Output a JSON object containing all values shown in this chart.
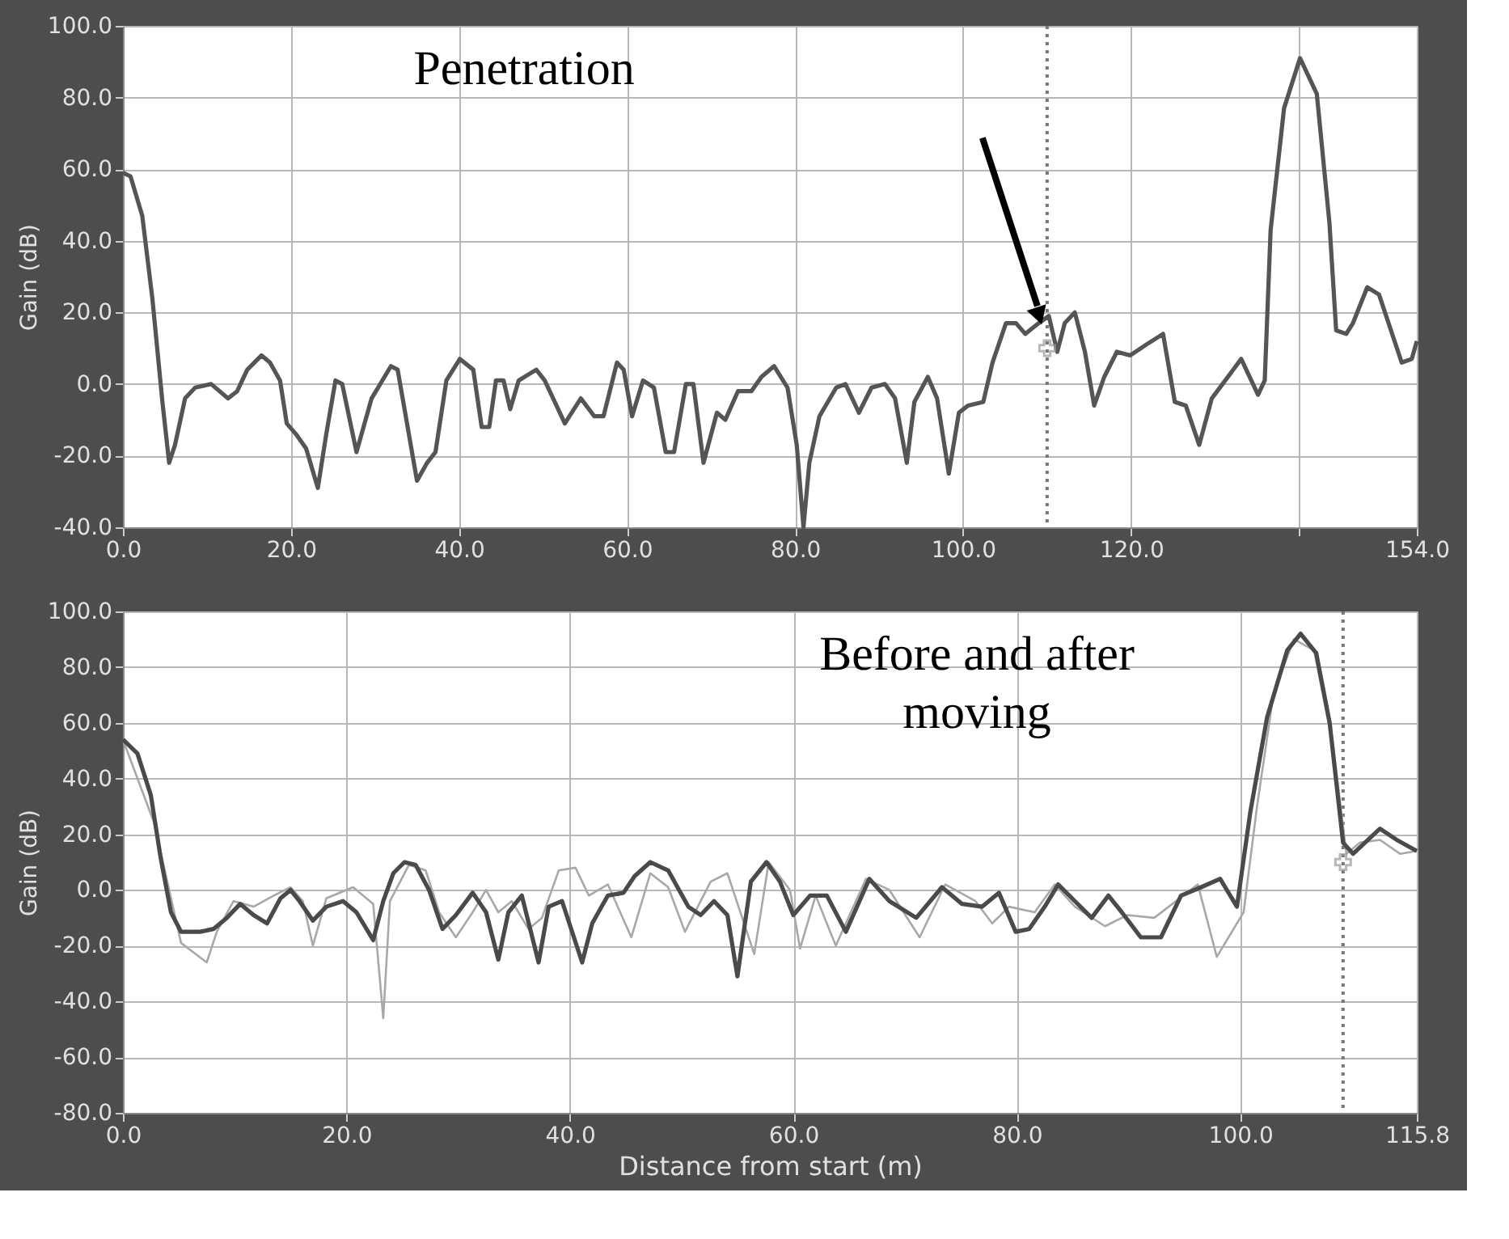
{
  "chart_data": [
    {
      "type": "line",
      "ylabel": "Gain (dB)",
      "annotations": [
        "Penetration"
      ],
      "xlim": [
        0,
        154
      ],
      "ylim": [
        -40,
        100
      ],
      "xticks": [
        {
          "value": 0,
          "label": "0.0"
        },
        {
          "value": 20,
          "label": "20.0"
        },
        {
          "value": 40,
          "label": "40.0"
        },
        {
          "value": 60,
          "label": "60.0"
        },
        {
          "value": 80,
          "label": "80.0"
        },
        {
          "value": 100,
          "label": "100.0"
        },
        {
          "value": 120,
          "label": "120.0"
        },
        {
          "value": 140,
          "label": null
        },
        {
          "value": 154,
          "label": "154.0"
        }
      ],
      "yticks": [
        {
          "value": -40,
          "label": "-40.0"
        },
        {
          "value": -20,
          "label": "-20.0"
        },
        {
          "value": 0,
          "label": "0.0"
        },
        {
          "value": 20,
          "label": "20.0"
        },
        {
          "value": 40,
          "label": "40.0"
        },
        {
          "value": 60,
          "label": "60.0"
        },
        {
          "value": 80,
          "label": "80.0"
        },
        {
          "value": 100,
          "label": "100.0"
        }
      ],
      "grid": true,
      "ref_lines": [
        {
          "axis": "x",
          "value": 110,
          "color": "#777777",
          "line_style": "dotted"
        }
      ],
      "series": [
        {
          "color": "#555555",
          "x": [
            0,
            0.9,
            2.3,
            3.5,
            4.7,
            5.5,
            6.2,
            7.4,
            8.6,
            10.5,
            12.5,
            13.6,
            14.8,
            16.5,
            17.5,
            18.7,
            19.5,
            20.6,
            21.8,
            23.2,
            24.2,
            25.3,
            26.1,
            27.8,
            29.6,
            31.9,
            32.7,
            35,
            36.2,
            37.2,
            38.5,
            40.1,
            41.7,
            42.7,
            43.6,
            44.4,
            45.3,
            46.1,
            47.1,
            49.2,
            50.2,
            52.6,
            54.5,
            56.1,
            57.2,
            58.8,
            59.6,
            60.6,
            61.9,
            63.2,
            64.6,
            65.6,
            67,
            67.9,
            69.1,
            70.7,
            71.7,
            73.2,
            74.8,
            76,
            77.5,
            79.1,
            80.2,
            81,
            81.7,
            82.9,
            84.9,
            86,
            87.6,
            89.1,
            90.7,
            91.9,
            93.3,
            94.2,
            95.8,
            96.9,
            98.3,
            99.5,
            100.6,
            102.4,
            103.5,
            105.1,
            106.3,
            107.4,
            109,
            110.2,
            111.2,
            112.1,
            113.3,
            114.5,
            115.6,
            116.8,
            118.3,
            119.9,
            121.8,
            123.8,
            125.2,
            126.5,
            128.1,
            129.6,
            131.2,
            133.1,
            134.3,
            135.1,
            135.9,
            136.6,
            138.2,
            140.1,
            142.1,
            143.6,
            144.4,
            145.6,
            146.4,
            148.1,
            149.5,
            152.2,
            153.4,
            154
          ],
          "values": [
            59,
            58,
            47,
            24,
            -5,
            -22,
            -17,
            -4,
            -1,
            0,
            -4,
            -2,
            4,
            8,
            6,
            1,
            -11,
            -14,
            -18,
            -29,
            -14,
            1,
            0,
            -19,
            -4,
            5,
            4,
            -27,
            -22,
            -19,
            1,
            7,
            4,
            -12,
            -12,
            1,
            1,
            -7,
            1,
            4,
            1,
            -11,
            -4,
            -9,
            -9,
            6,
            4,
            -9,
            1,
            -1,
            -19,
            -19,
            0,
            0,
            -22,
            -8,
            -10,
            -2,
            -2,
            2,
            5,
            -1,
            -17,
            -40,
            -22,
            -9,
            -1,
            0,
            -8,
            -1,
            0,
            -4,
            -22,
            -5,
            2,
            -4,
            -25,
            -8,
            -6,
            -5,
            6,
            17,
            17,
            14,
            17,
            19,
            9,
            17,
            20,
            9,
            -6,
            2,
            9,
            8,
            11,
            14,
            -5,
            -6,
            -17,
            -4,
            1,
            7,
            1,
            -3,
            1,
            43,
            77,
            91,
            81,
            45,
            15,
            14,
            17,
            27,
            25,
            6,
            7,
            12
          ]
        },
        {
          "type": "scatter",
          "marker": "cross",
          "color": "#999999",
          "x": [
            110
          ],
          "values": [
            10
          ]
        }
      ]
    },
    {
      "type": "line",
      "xlabel": "Distance from start (m)",
      "ylabel": "Gain (dB)",
      "annotations": [
        "Before and after\nmoving"
      ],
      "xlim": [
        0,
        115.8
      ],
      "ylim": [
        -80,
        100
      ],
      "xticks": [
        {
          "value": 0,
          "label": "0.0"
        },
        {
          "value": 20,
          "label": "20.0"
        },
        {
          "value": 40,
          "label": "40.0"
        },
        {
          "value": 60,
          "label": "60.0"
        },
        {
          "value": 80,
          "label": "80.0"
        },
        {
          "value": 100,
          "label": "100.0"
        },
        {
          "value": 115.8,
          "label": "115.8"
        }
      ],
      "yticks": [
        {
          "value": -80,
          "label": "-80.0"
        },
        {
          "value": -60,
          "label": "-60.0"
        },
        {
          "value": -40,
          "label": "-40.0"
        },
        {
          "value": -20,
          "label": "-20.0"
        },
        {
          "value": 0,
          "label": "0.0"
        },
        {
          "value": 20,
          "label": "20.0"
        },
        {
          "value": 40,
          "label": "40.0"
        },
        {
          "value": 60,
          "label": "60.0"
        },
        {
          "value": 80,
          "label": "80.0"
        },
        {
          "value": 100,
          "label": "100.0"
        }
      ],
      "grid": true,
      "ref_lines": [
        {
          "axis": "x",
          "value": 109.2,
          "color": "#777777",
          "line_style": "dotted"
        }
      ],
      "series": [
        {
          "color": "#a8a8a8",
          "x": [
            0,
            2.8,
            5.2,
            7.5,
            8.4,
            9.9,
            11.7,
            13.5,
            15,
            16.1,
            17,
            18.2,
            20.6,
            22.4,
            23.3,
            23.9,
            25.6,
            27.1,
            28.3,
            29.8,
            31.3,
            32.5,
            33.6,
            34.8,
            36.3,
            37.5,
            39,
            40.5,
            41.7,
            43.4,
            45.5,
            47.2,
            48.8,
            50.3,
            52.6,
            54.1,
            56.5,
            57.8,
            59.7,
            60.6,
            62,
            63.8,
            66.5,
            68.6,
            71.3,
            73.6,
            76.3,
            77.8,
            79.3,
            81.6,
            83.4,
            85.2,
            87.9,
            89.9,
            92.3,
            96.2,
            97.9,
            100.3,
            101.5,
            103,
            104.8,
            106.6,
            108.3,
            109.5,
            110.7,
            112.5,
            114.3,
            115.8
          ],
          "values": [
            54,
            24,
            -19,
            -26,
            -15,
            -4,
            -6,
            -2,
            1,
            -4,
            -20,
            -3,
            1,
            -5,
            -46,
            -4,
            9,
            7,
            -8,
            -17,
            -8,
            0,
            -8,
            -4,
            -14,
            -10,
            7,
            8,
            -2,
            2,
            -17,
            6,
            1,
            -15,
            3,
            6,
            -23,
            10,
            0,
            -21,
            -2,
            -20,
            4,
            0,
            -17,
            2,
            -4,
            -12,
            -6,
            -8,
            2,
            -6,
            -13,
            -9,
            -10,
            2,
            -24,
            -8,
            30,
            71,
            90,
            86,
            52,
            13,
            17,
            18,
            13,
            14
          ]
        },
        {
          "color": "#4a4a4a",
          "x": [
            0,
            1.3,
            2.5,
            3.4,
            4.3,
            5.2,
            6.9,
            8.1,
            9.3,
            10.5,
            11.7,
            12.9,
            14.1,
            15,
            15.8,
            17,
            18.2,
            19.7,
            20.9,
            22.4,
            23.3,
            24.2,
            25.2,
            26.2,
            27.4,
            28.6,
            29.8,
            31.3,
            32.5,
            33.6,
            34.5,
            35.7,
            37.2,
            38.1,
            39.3,
            41.1,
            42,
            43.4,
            44.8,
            45.8,
            47.2,
            48.8,
            50.6,
            51.7,
            52.9,
            54.1,
            55,
            56.2,
            57.6,
            58.8,
            60,
            61.5,
            63,
            64.7,
            66.8,
            68.6,
            71,
            73.3,
            75.1,
            76.9,
            78.4,
            79.9,
            81.1,
            82.5,
            83.7,
            85.2,
            86.7,
            88.2,
            89.4,
            91.1,
            92.9,
            94.7,
            96.5,
            98.2,
            99.7,
            100.9,
            102.4,
            104.2,
            105.4,
            106.8,
            108,
            109.2,
            110.1,
            112.5,
            114,
            115.8
          ],
          "values": [
            54,
            49,
            34,
            11,
            -8,
            -15,
            -15,
            -14,
            -10,
            -5,
            -9,
            -12,
            -3,
            0,
            -4,
            -11,
            -6,
            -4,
            -8,
            -18,
            -4,
            6,
            10,
            9,
            0,
            -14,
            -9,
            -1,
            -8,
            -25,
            -8,
            -2,
            -26,
            -6,
            -4,
            -26,
            -12,
            -2,
            -1,
            5,
            10,
            7,
            -6,
            -9,
            -4,
            -9,
            -31,
            3,
            10,
            3,
            -9,
            -2,
            -2,
            -15,
            4,
            -4,
            -10,
            1,
            -5,
            -6,
            -1,
            -15,
            -14,
            -6,
            2,
            -4,
            -10,
            -2,
            -8,
            -17,
            -17,
            -2,
            1,
            4,
            -6,
            28,
            62,
            86,
            92,
            85,
            60,
            17,
            13,
            22,
            18,
            14
          ]
        },
        {
          "type": "scatter",
          "marker": "cross",
          "color": "#999999",
          "x": [
            109.2
          ],
          "values": [
            10
          ]
        }
      ]
    }
  ]
}
